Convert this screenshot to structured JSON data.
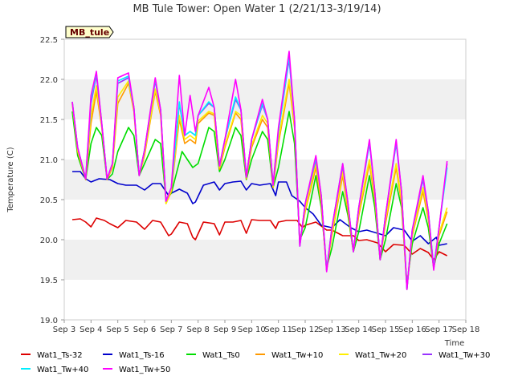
{
  "chart_data": {
    "type": "line",
    "title": "MB Tule Tower: Open Water 1 (2/21/13-3/19/14)",
    "site_tag": "MB_tule",
    "xlabel": "Time",
    "ylabel": "Temperature (C)",
    "xlim": [
      3,
      18
    ],
    "ylim": [
      19.0,
      22.5
    ],
    "x_ticks": [
      3,
      4,
      5,
      6,
      7,
      8,
      9,
      10,
      11,
      12,
      13,
      14,
      15,
      16,
      17,
      18
    ],
    "x_tick_labels": [
      "Sep 3",
      "Sep 4",
      "Sep 5",
      "Sep 6",
      "Sep 7",
      "Sep 8",
      "Sep 9",
      "Sep 10",
      "Sep 11",
      "Sep 12",
      "Sep 13",
      "Sep 14",
      "Sep 15",
      "Sep 16",
      "Sep 17",
      "Sep 18"
    ],
    "y_ticks": [
      19.0,
      19.5,
      20.0,
      20.5,
      21.0,
      21.5,
      22.0,
      22.5
    ],
    "y_tick_labels": [
      "19.0",
      "19.5",
      "20.0",
      "20.5",
      "21.0",
      "21.5",
      "22.0",
      "22.5"
    ],
    "grid": "horizontal bands",
    "legend_position": "bottom",
    "series": [
      {
        "name": "Wat1_Ts-32",
        "color": "#dd0000",
        "x": [
          3.3,
          3.6,
          3.8,
          4.0,
          4.2,
          4.5,
          4.7,
          5.0,
          5.3,
          5.7,
          6.0,
          6.3,
          6.6,
          6.9,
          7.0,
          7.3,
          7.6,
          7.8,
          7.9,
          8.2,
          8.6,
          8.8,
          9.0,
          9.3,
          9.6,
          9.8,
          10.0,
          10.3,
          10.7,
          10.9,
          11.0,
          11.3,
          11.7,
          11.9,
          12.0,
          12.4,
          12.8,
          13.0,
          13.4,
          13.8,
          14.0,
          14.3,
          14.7,
          15.0,
          15.3,
          15.7,
          16.0,
          16.3,
          16.6,
          16.8,
          17.0,
          17.3
        ],
        "y": [
          20.25,
          20.26,
          20.22,
          20.16,
          20.27,
          20.24,
          20.2,
          20.15,
          20.24,
          20.22,
          20.13,
          20.24,
          20.22,
          20.05,
          20.07,
          20.22,
          20.2,
          20.03,
          20.0,
          20.22,
          20.2,
          20.06,
          20.22,
          20.22,
          20.24,
          20.08,
          20.25,
          20.24,
          20.24,
          20.14,
          20.22,
          20.24,
          20.24,
          20.15,
          20.18,
          20.22,
          20.12,
          20.12,
          20.05,
          20.05,
          19.99,
          20.0,
          19.96,
          19.85,
          19.94,
          19.93,
          19.82,
          19.89,
          19.84,
          19.75,
          19.85,
          19.8
        ]
      },
      {
        "name": "Wat1_Ts-16",
        "color": "#0000cc",
        "x": [
          3.3,
          3.6,
          3.8,
          4.0,
          4.3,
          4.7,
          5.0,
          5.3,
          5.7,
          6.0,
          6.3,
          6.6,
          6.9,
          7.0,
          7.3,
          7.6,
          7.8,
          7.9,
          8.2,
          8.6,
          8.8,
          9.0,
          9.3,
          9.6,
          9.8,
          10.0,
          10.3,
          10.7,
          10.9,
          11.0,
          11.3,
          11.5,
          11.8,
          12.0,
          12.3,
          12.6,
          13.0,
          13.3,
          13.7,
          14.0,
          14.3,
          14.7,
          15.0,
          15.3,
          15.7,
          16.0,
          16.3,
          16.6,
          16.9,
          17.0,
          17.3
        ],
        "y": [
          20.85,
          20.85,
          20.76,
          20.72,
          20.76,
          20.75,
          20.7,
          20.68,
          20.68,
          20.62,
          20.7,
          20.7,
          20.55,
          20.58,
          20.63,
          20.58,
          20.45,
          20.47,
          20.68,
          20.72,
          20.62,
          20.7,
          20.72,
          20.73,
          20.62,
          20.7,
          20.68,
          20.7,
          20.55,
          20.72,
          20.72,
          20.55,
          20.48,
          20.4,
          20.32,
          20.18,
          20.15,
          20.25,
          20.15,
          20.1,
          20.12,
          20.08,
          20.05,
          20.15,
          20.12,
          19.98,
          20.05,
          19.95,
          20.03,
          19.93,
          19.95
        ]
      },
      {
        "name": "Wat1_Ts0",
        "color": "#00dd00",
        "x": [
          3.3,
          3.5,
          3.8,
          4.0,
          4.2,
          4.4,
          4.6,
          4.8,
          5.0,
          5.4,
          5.6,
          5.8,
          6.0,
          6.4,
          6.6,
          6.8,
          7.0,
          7.4,
          7.6,
          7.8,
          8.0,
          8.4,
          8.6,
          8.8,
          9.0,
          9.4,
          9.6,
          9.8,
          10.0,
          10.4,
          10.6,
          10.8,
          11.0,
          11.4,
          11.6,
          11.8,
          12.0,
          12.4,
          12.6,
          12.8,
          13.0,
          13.4,
          13.6,
          13.8,
          14.0,
          14.4,
          14.6,
          14.8,
          15.0,
          15.4,
          15.6,
          15.8,
          16.0,
          16.4,
          16.6,
          16.8,
          17.0,
          17.3
        ],
        "y": [
          21.6,
          21.05,
          20.75,
          21.2,
          21.4,
          21.3,
          20.75,
          20.82,
          21.1,
          21.4,
          21.3,
          20.8,
          20.95,
          21.25,
          21.2,
          20.5,
          20.58,
          21.1,
          21.0,
          20.9,
          20.95,
          21.4,
          21.35,
          20.85,
          21.0,
          21.4,
          21.3,
          20.75,
          21.0,
          21.35,
          21.25,
          20.65,
          20.9,
          21.6,
          21.2,
          20.0,
          20.15,
          20.8,
          20.4,
          19.65,
          19.9,
          20.6,
          20.3,
          19.85,
          20.1,
          20.8,
          20.4,
          19.75,
          20.0,
          20.7,
          20.4,
          19.45,
          19.95,
          20.4,
          20.15,
          19.65,
          19.95,
          20.2
        ]
      },
      {
        "name": "Wat1_Tw+10",
        "color": "#ff9900",
        "x": [
          3.3,
          3.5,
          3.8,
          4.0,
          4.2,
          4.4,
          4.6,
          4.8,
          5.0,
          5.4,
          5.6,
          5.8,
          6.0,
          6.4,
          6.6,
          6.8,
          7.0,
          7.3,
          7.5,
          7.7,
          7.9,
          8.0,
          8.4,
          8.6,
          8.8,
          9.0,
          9.4,
          9.6,
          9.8,
          10.0,
          10.4,
          10.6,
          10.8,
          11.0,
          11.4,
          11.6,
          11.8,
          12.0,
          12.4,
          12.6,
          12.8,
          13.0,
          13.4,
          13.6,
          13.8,
          14.0,
          14.4,
          14.6,
          14.8,
          15.0,
          15.4,
          15.6,
          15.8,
          16.0,
          16.4,
          16.6,
          16.8,
          17.0,
          17.3
        ],
        "y": [
          21.7,
          21.1,
          20.75,
          21.45,
          21.85,
          21.4,
          20.75,
          20.9,
          21.7,
          21.95,
          21.6,
          20.8,
          21.05,
          21.85,
          21.55,
          20.45,
          20.6,
          21.5,
          21.2,
          21.25,
          21.2,
          21.45,
          21.58,
          21.55,
          20.88,
          21.15,
          21.58,
          21.5,
          20.76,
          21.15,
          21.5,
          21.4,
          20.65,
          21.2,
          21.95,
          21.4,
          19.95,
          20.35,
          20.9,
          20.45,
          19.62,
          20.05,
          20.8,
          20.35,
          19.85,
          20.3,
          20.95,
          20.5,
          19.75,
          20.2,
          20.9,
          20.45,
          19.4,
          20.05,
          20.6,
          20.25,
          19.65,
          20.05,
          20.35
        ]
      },
      {
        "name": "Wat1_Tw+20",
        "color": "#ffee00",
        "x": [
          3.3,
          3.5,
          3.8,
          4.0,
          4.2,
          4.4,
          4.6,
          4.8,
          5.0,
          5.4,
          5.6,
          5.8,
          6.0,
          6.4,
          6.6,
          6.8,
          7.0,
          7.3,
          7.5,
          7.7,
          7.9,
          8.0,
          8.4,
          8.6,
          8.8,
          9.0,
          9.4,
          9.6,
          9.8,
          10.0,
          10.4,
          10.6,
          10.8,
          11.0,
          11.4,
          11.6,
          11.8,
          12.0,
          12.4,
          12.6,
          12.8,
          13.0,
          13.4,
          13.6,
          13.8,
          14.0,
          14.4,
          14.6,
          14.8,
          15.0,
          15.4,
          15.6,
          15.8,
          16.0,
          16.4,
          16.6,
          16.8,
          17.0,
          17.3
        ],
        "y": [
          21.7,
          21.12,
          20.76,
          21.55,
          21.92,
          21.42,
          20.76,
          20.92,
          21.78,
          21.98,
          21.62,
          20.8,
          21.08,
          21.88,
          21.58,
          20.45,
          20.62,
          21.55,
          21.25,
          21.3,
          21.25,
          21.48,
          21.6,
          21.57,
          20.9,
          21.18,
          21.6,
          21.55,
          20.77,
          21.18,
          21.55,
          21.45,
          20.66,
          21.25,
          22.0,
          21.45,
          19.95,
          20.38,
          20.95,
          20.5,
          19.62,
          20.08,
          20.85,
          20.4,
          19.85,
          20.35,
          21.0,
          20.55,
          19.75,
          20.25,
          20.95,
          20.5,
          19.38,
          20.08,
          20.65,
          20.3,
          19.65,
          20.08,
          20.4
        ]
      },
      {
        "name": "Wat1_Tw+30",
        "color": "#9933ff",
        "x": [
          3.3,
          3.5,
          3.8,
          4.0,
          4.2,
          4.4,
          4.6,
          4.8,
          5.0,
          5.4,
          5.6,
          5.8,
          6.0,
          6.4,
          6.6,
          6.8,
          7.0,
          7.3,
          7.5,
          7.7,
          7.9,
          8.0,
          8.4,
          8.6,
          8.8,
          9.0,
          9.4,
          9.6,
          9.8,
          10.0,
          10.4,
          10.6,
          10.8,
          11.0,
          11.4,
          11.6,
          11.8,
          12.0,
          12.4,
          12.6,
          12.8,
          13.0,
          13.4,
          13.6,
          13.8,
          14.0,
          14.4,
          14.6,
          14.8,
          15.0,
          15.4,
          15.6,
          15.8,
          16.0,
          16.4,
          16.6,
          16.8,
          17.0,
          17.3
        ],
        "y": [
          21.72,
          21.15,
          20.76,
          21.7,
          22.05,
          21.45,
          20.76,
          20.95,
          21.95,
          22.02,
          21.65,
          20.8,
          21.12,
          21.98,
          21.62,
          20.48,
          20.65,
          21.7,
          21.3,
          21.35,
          21.3,
          21.55,
          21.7,
          21.65,
          20.92,
          21.25,
          21.75,
          21.62,
          20.78,
          21.25,
          21.68,
          21.5,
          20.68,
          21.35,
          22.25,
          21.5,
          19.92,
          20.45,
          21.0,
          20.55,
          19.62,
          20.15,
          20.92,
          20.45,
          19.85,
          20.4,
          21.2,
          20.6,
          19.75,
          20.3,
          21.2,
          20.6,
          19.38,
          20.12,
          20.75,
          20.35,
          19.65,
          20.15,
          20.95
        ]
      },
      {
        "name": "Wat1_Tw+40",
        "color": "#00eeff",
        "x": [
          3.3,
          3.5,
          3.8,
          4.0,
          4.2,
          4.4,
          4.6,
          4.8,
          5.0,
          5.4,
          5.6,
          5.8,
          6.0,
          6.4,
          6.6,
          6.8,
          7.0,
          7.3,
          7.5,
          7.7,
          7.9,
          8.0,
          8.4,
          8.6,
          8.8,
          9.0,
          9.4,
          9.6,
          9.8,
          10.0,
          10.4,
          10.6,
          10.8,
          11.0,
          11.4,
          11.6,
          11.8,
          12.0,
          12.4,
          12.6,
          12.8,
          13.0,
          13.4,
          13.6,
          13.8,
          14.0,
          14.4,
          14.6,
          14.8,
          15.0,
          15.4,
          15.6,
          15.8,
          16.0,
          16.4,
          16.6,
          16.8,
          17.0,
          17.3
        ],
        "y": [
          21.72,
          21.15,
          20.76,
          21.75,
          22.08,
          21.45,
          20.76,
          20.95,
          21.98,
          22.04,
          21.65,
          20.8,
          21.12,
          22.0,
          21.62,
          20.48,
          20.65,
          21.72,
          21.3,
          21.35,
          21.3,
          21.55,
          21.72,
          21.65,
          20.92,
          21.25,
          21.78,
          21.62,
          20.78,
          21.25,
          21.7,
          21.5,
          20.68,
          21.35,
          22.28,
          21.5,
          19.92,
          20.45,
          21.02,
          20.55,
          19.62,
          20.15,
          20.95,
          20.45,
          19.85,
          20.4,
          21.22,
          20.6,
          19.75,
          20.3,
          21.22,
          20.6,
          19.38,
          20.12,
          20.78,
          20.35,
          19.65,
          20.15,
          20.9
        ]
      },
      {
        "name": "Wat1_Tw+50",
        "color": "#ff00ff",
        "x": [
          3.3,
          3.5,
          3.8,
          4.0,
          4.2,
          4.4,
          4.6,
          4.8,
          5.0,
          5.4,
          5.6,
          5.8,
          6.0,
          6.4,
          6.6,
          6.8,
          7.0,
          7.3,
          7.5,
          7.7,
          7.9,
          8.0,
          8.4,
          8.6,
          8.8,
          9.0,
          9.4,
          9.6,
          9.8,
          10.0,
          10.4,
          10.6,
          10.8,
          11.0,
          11.4,
          11.6,
          11.8,
          12.0,
          12.4,
          12.6,
          12.8,
          13.0,
          13.4,
          13.6,
          13.8,
          14.0,
          14.4,
          14.6,
          14.8,
          15.0,
          15.4,
          15.6,
          15.8,
          16.0,
          16.4,
          16.6,
          16.8,
          17.0,
          17.3
        ],
        "y": [
          21.72,
          21.15,
          20.76,
          21.8,
          22.1,
          21.45,
          20.76,
          20.95,
          22.02,
          22.08,
          21.65,
          20.8,
          21.12,
          22.02,
          21.62,
          20.48,
          20.65,
          22.05,
          21.3,
          21.8,
          21.35,
          21.55,
          21.9,
          21.65,
          20.92,
          21.25,
          22.0,
          21.62,
          20.78,
          21.25,
          21.75,
          21.5,
          20.68,
          21.4,
          22.35,
          21.5,
          19.92,
          20.45,
          21.05,
          20.55,
          19.6,
          20.15,
          20.95,
          20.45,
          19.85,
          20.4,
          21.25,
          20.6,
          19.75,
          20.3,
          21.25,
          20.6,
          19.38,
          20.12,
          20.8,
          20.35,
          19.62,
          20.15,
          20.98
        ]
      }
    ]
  }
}
